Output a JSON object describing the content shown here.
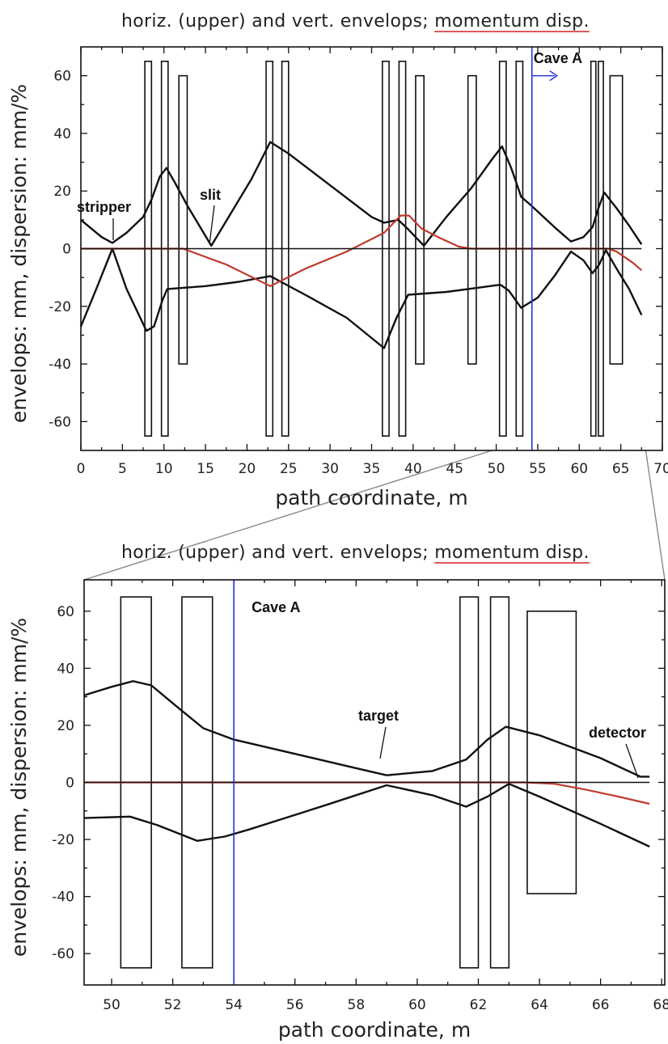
{
  "colors": {
    "envelope": "#111111",
    "dispersion": "#c0392b",
    "marker": "#2233dd",
    "underline": "#d62020"
  },
  "chart_data": [
    {
      "type": "line",
      "title_main": "horiz. (upper) and vert. envelops;",
      "title_emph": "momentum disp.",
      "xlabel": "path coordinate, m",
      "ylabel": "envelops: mm, dispersion: mm/%",
      "xlim": [
        0,
        70
      ],
      "ylim": [
        -70,
        70
      ],
      "x_ticks": [
        0,
        5,
        10,
        15,
        20,
        25,
        30,
        35,
        40,
        45,
        50,
        55,
        60,
        65,
        70
      ],
      "y_ticks": [
        -60,
        -40,
        -20,
        0,
        20,
        40,
        60
      ],
      "grid": false,
      "marker_line": {
        "x": 54.3,
        "label": "Cave A"
      },
      "magnets": [
        {
          "x0": 7.7,
          "x1": 8.5,
          "y0": -65,
          "y1": 65
        },
        {
          "x0": 9.7,
          "x1": 10.5,
          "y0": -65,
          "y1": 65
        },
        {
          "x0": 11.8,
          "x1": 12.8,
          "y0": -40,
          "y1": 60
        },
        {
          "x0": 22.3,
          "x1": 23.1,
          "y0": -65,
          "y1": 65
        },
        {
          "x0": 24.2,
          "x1": 25.0,
          "y0": -65,
          "y1": 65
        },
        {
          "x0": 36.3,
          "x1": 37.1,
          "y0": -65,
          "y1": 65
        },
        {
          "x0": 38.3,
          "x1": 39.1,
          "y0": -65,
          "y1": 65
        },
        {
          "x0": 40.3,
          "x1": 41.3,
          "y0": -40,
          "y1": 60
        },
        {
          "x0": 46.6,
          "x1": 47.6,
          "y0": -40,
          "y1": 60
        },
        {
          "x0": 50.4,
          "x1": 51.2,
          "y0": -65,
          "y1": 65
        },
        {
          "x0": 52.4,
          "x1": 53.2,
          "y0": -65,
          "y1": 65
        },
        {
          "x0": 61.4,
          "x1": 62.0,
          "y0": -65,
          "y1": 65
        },
        {
          "x0": 62.3,
          "x1": 62.9,
          "y0": -65,
          "y1": 65
        },
        {
          "x0": 63.7,
          "x1": 65.2,
          "y0": -40,
          "y1": 60
        }
      ],
      "series": [
        {
          "name": "horizontal envelope",
          "points": [
            [
              0,
              10
            ],
            [
              2.5,
              4
            ],
            [
              3.8,
              2
            ],
            [
              5.5,
              5.5
            ],
            [
              7.5,
              11
            ],
            [
              8.5,
              17
            ],
            [
              9.5,
              25
            ],
            [
              10.3,
              28
            ],
            [
              11.3,
              23
            ],
            [
              12.8,
              15
            ],
            [
              15.7,
              1
            ],
            [
              18,
              12
            ],
            [
              20.5,
              24
            ],
            [
              22.8,
              37
            ],
            [
              25,
              33
            ],
            [
              30,
              22
            ],
            [
              35,
              11
            ],
            [
              36.5,
              9
            ],
            [
              38.2,
              10
            ],
            [
              39.3,
              7
            ],
            [
              41.3,
              1
            ],
            [
              44,
              11
            ],
            [
              47,
              21
            ],
            [
              49.5,
              31
            ],
            [
              50.7,
              35.5
            ],
            [
              51.8,
              28
            ],
            [
              53,
              18
            ],
            [
              54.2,
              15
            ],
            [
              57,
              7.5
            ],
            [
              59,
              2.5
            ],
            [
              60.5,
              4
            ],
            [
              61.6,
              7.5
            ],
            [
              62.3,
              14
            ],
            [
              63,
              19.5
            ],
            [
              64.5,
              14
            ],
            [
              66,
              8
            ],
            [
              67.5,
              1.5
            ]
          ]
        },
        {
          "name": "vertical envelope",
          "points": [
            [
              0,
              -27
            ],
            [
              2,
              -13
            ],
            [
              3.8,
              0
            ],
            [
              5.5,
              -14
            ],
            [
              7.9,
              -28.5
            ],
            [
              8.8,
              -27
            ],
            [
              9.8,
              -18
            ],
            [
              10.4,
              -14
            ],
            [
              15,
              -13
            ],
            [
              19,
              -11.5
            ],
            [
              22.8,
              -9.5
            ],
            [
              27,
              -16
            ],
            [
              32,
              -24
            ],
            [
              36.5,
              -34.5
            ],
            [
              38,
              -24
            ],
            [
              39.4,
              -16
            ],
            [
              44,
              -15
            ],
            [
              48,
              -13.5
            ],
            [
              50.5,
              -12.5
            ],
            [
              51.5,
              -14.5
            ],
            [
              53,
              -20.5
            ],
            [
              55,
              -17
            ],
            [
              57,
              -9.5
            ],
            [
              59,
              -1
            ],
            [
              60.5,
              -4
            ],
            [
              61.6,
              -8.5
            ],
            [
              62.4,
              -5.5
            ],
            [
              63.2,
              -0.5
            ],
            [
              64.5,
              -7
            ],
            [
              66,
              -14
            ],
            [
              67.5,
              -23
            ]
          ]
        },
        {
          "name": "momentum dispersion",
          "points": [
            [
              0,
              0
            ],
            [
              12.3,
              0
            ],
            [
              17.5,
              -5.5
            ],
            [
              22.8,
              -13
            ],
            [
              27,
              -7
            ],
            [
              32,
              -1
            ],
            [
              36.5,
              5.5
            ],
            [
              38.5,
              11.5
            ],
            [
              39.5,
              11.5
            ],
            [
              41,
              7
            ],
            [
              43,
              4
            ],
            [
              45.5,
              0.7
            ],
            [
              47,
              0
            ],
            [
              63.5,
              0
            ],
            [
              64.5,
              -1
            ],
            [
              65.5,
              -3
            ],
            [
              66.5,
              -5
            ],
            [
              67.5,
              -7.5
            ]
          ]
        },
        {
          "name": "axis",
          "points": [
            [
              0,
              0
            ],
            [
              67.5,
              0
            ]
          ]
        }
      ],
      "annotations": [
        {
          "text": "stripper",
          "x": 3.8,
          "y": 2
        },
        {
          "text": "slit",
          "x": 15.7,
          "y": 1
        }
      ]
    },
    {
      "type": "line",
      "title_main": "horiz. (upper) and vert. envelops;",
      "title_emph": "momentum disp.",
      "xlabel": "path coordinate, m",
      "ylabel": "envelops: mm, dispersion: mm/%",
      "xlim": [
        49.1,
        68.1
      ],
      "ylim": [
        -71,
        71
      ],
      "x_ticks": [
        50,
        52,
        54,
        56,
        58,
        60,
        62,
        64,
        66,
        68
      ],
      "y_ticks": [
        -60,
        -40,
        -20,
        0,
        20,
        40,
        60
      ],
      "grid": false,
      "marker_line": {
        "x": 54.0,
        "label": "Cave A"
      },
      "magnets": [
        {
          "x0": 50.3,
          "x1": 51.3,
          "y0": -65,
          "y1": 65
        },
        {
          "x0": 52.3,
          "x1": 53.3,
          "y0": -65,
          "y1": 65
        },
        {
          "x0": 61.4,
          "x1": 62.0,
          "y0": -65,
          "y1": 65
        },
        {
          "x0": 62.4,
          "x1": 63.0,
          "y0": -65,
          "y1": 65
        },
        {
          "x0": 63.6,
          "x1": 65.2,
          "y0": -39,
          "y1": 60
        }
      ],
      "series": [
        {
          "name": "horizontal envelope",
          "points": [
            [
              49.1,
              30.5
            ],
            [
              50,
              33.5
            ],
            [
              50.7,
              35.5
            ],
            [
              51.3,
              34
            ],
            [
              52.2,
              26
            ],
            [
              53,
              19
            ],
            [
              54,
              15
            ],
            [
              56,
              10
            ],
            [
              58,
              5
            ],
            [
              59,
              2.5
            ],
            [
              60.5,
              4
            ],
            [
              61.6,
              8
            ],
            [
              62.3,
              15
            ],
            [
              62.9,
              19.5
            ],
            [
              64,
              16.5
            ],
            [
              66,
              8.5
            ],
            [
              67.3,
              2
            ],
            [
              67.6,
              2
            ]
          ]
        },
        {
          "name": "vertical envelope",
          "points": [
            [
              49.1,
              -12.5
            ],
            [
              50.6,
              -12
            ],
            [
              51.5,
              -15
            ],
            [
              52.8,
              -20.5
            ],
            [
              53.7,
              -19
            ],
            [
              54.5,
              -16.5
            ],
            [
              57,
              -8
            ],
            [
              59,
              -1
            ],
            [
              60.5,
              -4.5
            ],
            [
              61.6,
              -8.5
            ],
            [
              62.3,
              -5
            ],
            [
              63,
              -0.5
            ],
            [
              64,
              -5
            ],
            [
              66,
              -14.5
            ],
            [
              67.6,
              -22.5
            ]
          ]
        },
        {
          "name": "momentum dispersion",
          "points": [
            [
              49.1,
              0
            ],
            [
              63.5,
              0
            ],
            [
              64.5,
              -0.5
            ],
            [
              65.5,
              -2.5
            ],
            [
              66.5,
              -4.8
            ],
            [
              67.6,
              -7.5
            ]
          ]
        },
        {
          "name": "axis",
          "points": [
            [
              49.1,
              0
            ],
            [
              67.6,
              0
            ]
          ]
        }
      ],
      "annotations": [
        {
          "text": "target",
          "x": 59.0,
          "y": 2.5
        },
        {
          "text": "detector",
          "x": 67.4,
          "y": 2
        }
      ]
    }
  ]
}
